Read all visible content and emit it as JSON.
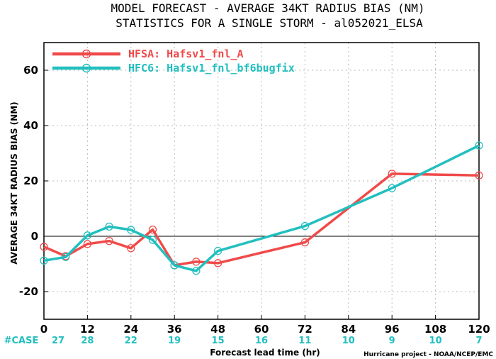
{
  "chart_data": {
    "type": "line",
    "title_line1": "MODEL FORECAST - AVERAGE 34KT RADIUS BIAS (NM)",
    "title_line2": "STATISTICS FOR A SINGLE STORM - al052021_ELSA",
    "xlabel": "Forecast lead time (hr)",
    "ylabel": "AVERAGE 34KT RADIUS BIAS (NM)",
    "xlim": [
      0,
      120
    ],
    "ylim": [
      -30,
      70
    ],
    "x_ticks": [
      "0",
      "12",
      "24",
      "36",
      "48",
      "60",
      "72",
      "84",
      "96",
      "108",
      "120"
    ],
    "y_ticks": [
      "60",
      "40",
      "20",
      "0",
      "-20"
    ],
    "grid": true,
    "legend_position": "top-left",
    "series": [
      {
        "name": "HFSA: Hafsv1_fnl_A",
        "color": "#f04a4a",
        "x": [
          0,
          6,
          12,
          18,
          24,
          30,
          36,
          42,
          48,
          72,
          96,
          120
        ],
        "values": [
          -3.8,
          -7.2,
          -2.8,
          -1.7,
          -4.3,
          2.4,
          -10.5,
          -9.2,
          -9.7,
          -2.2,
          22.6,
          22.0
        ]
      },
      {
        "name": "HFC6: Hafsv1_fnl_bf6bugfix",
        "color": "#22bfbf",
        "x": [
          0,
          6,
          12,
          18,
          24,
          30,
          36,
          42,
          48,
          72,
          96,
          120
        ],
        "values": [
          -8.8,
          -7.5,
          0.3,
          3.5,
          2.3,
          -1.3,
          -10.5,
          -12.5,
          -5.3,
          3.7,
          17.4,
          32.8
        ]
      }
    ],
    "case_label": "#CASE",
    "case_x": [
      0,
      12,
      24,
      36,
      48,
      60,
      72,
      84,
      96,
      108,
      120
    ],
    "case_counts": [
      "27",
      "28",
      "22",
      "19",
      "15",
      "16",
      "11",
      "10",
      "9",
      "10",
      "7"
    ],
    "credit": "Hurricane project - NOAA/NCEP/EMC"
  }
}
